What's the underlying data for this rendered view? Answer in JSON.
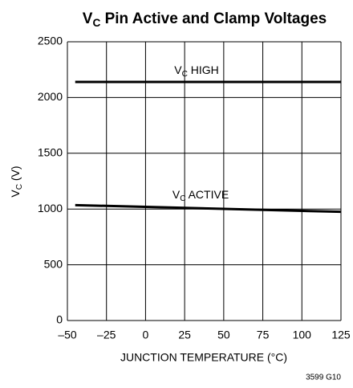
{
  "chart_data": {
    "type": "line",
    "title": [
      "V",
      "C",
      " Pin Active and Clamp Voltages"
    ],
    "xlabel": "JUNCTION TEMPERATURE (°C)",
    "ylabel": [
      "V",
      "C",
      " (V)"
    ],
    "note": "3599 G10",
    "annotations": [
      [
        "V",
        "C",
        " HIGH"
      ],
      [
        "V",
        "C",
        " ACTIVE"
      ]
    ],
    "xlim": [
      -50,
      125
    ],
    "ylim": [
      0,
      2500
    ],
    "xticks": [
      {
        "value": -50,
        "label": "–50"
      },
      {
        "value": -25,
        "label": "–25"
      },
      0,
      25,
      50,
      75,
      100,
      125
    ],
    "yticks": [
      0,
      500,
      1000,
      1500,
      2000,
      2500
    ],
    "grid": true,
    "series": [
      {
        "color": "#000000",
        "x": [
          -45,
          125
        ],
        "values": [
          2140,
          2140
        ]
      },
      {
        "color": "#000000",
        "x": [
          -45,
          40,
          125
        ],
        "values": [
          1035,
          1005,
          975
        ]
      }
    ]
  }
}
